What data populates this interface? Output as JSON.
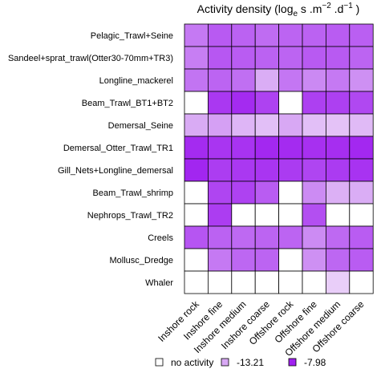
{
  "chart_data": {
    "type": "heatmap",
    "title": "Activity density (log",
    "title_sub_e": "e",
    "title_units": " s .m",
    "title_sup_m": "−2",
    "title_units2": " .d",
    "title_sup_d": "−1",
    "title_close": " )",
    "rows": [
      "Pelagic_Trawl+Seine",
      "Sandeel+sprat_trawl(Otter30-70mm+TR3)",
      "Longline_mackerel",
      "Beam_Trawl_BT1+BT2",
      "Demersal_Seine",
      "Demersal_Otter_Trawl_TR1",
      "Gill_Nets+Longline_demersal",
      "Beam_Trawl_shrimp",
      "Nephrops_Trawl_TR2",
      "Creels",
      "Mollusc_Dredge",
      "Whaler"
    ],
    "columns": [
      "Inshore rock",
      "Inshore fine",
      "Inshore medium",
      "Inshore coarse",
      "Offshore rock",
      "Offshore fine",
      "Offshore medium",
      "Offshore coarse"
    ],
    "color_scale": {
      "low_value": -13.21,
      "low_color": "#d8a8f4",
      "high_value": -7.98,
      "high_color": "#a020f0",
      "no_activity_color": "#ffffff"
    },
    "values": [
      [
        -11.4,
        -10.2,
        -10.5,
        -10.9,
        -10.6,
        -10.5,
        -10.3,
        -10.4
      ],
      [
        -11.6,
        -10.1,
        -10.3,
        -10.5,
        -10.6,
        -10.2,
        -10.2,
        -10.6
      ],
      [
        -11.2,
        -10.6,
        -11.0,
        -13.5,
        -11.3,
        -12.0,
        -11.4,
        -12.3
      ],
      [
        null,
        -8.9,
        -8.4,
        -9.3,
        null,
        -9.2,
        -9.2,
        -9.5
      ],
      [
        -13.4,
        -12.9,
        -14.0,
        -14.6,
        -13.2,
        -14.6,
        -14.8,
        -14.3
      ],
      [
        -8.4,
        -8.8,
        -8.7,
        -8.3,
        -8.4,
        -8.6,
        -8.5,
        -8.3
      ],
      [
        -8.2,
        -9.1,
        -8.9,
        -8.8,
        -9.0,
        -9.4,
        -9.0,
        -8.7
      ],
      [
        null,
        -9.4,
        -9.3,
        -10.3,
        null,
        -12.1,
        -13.7,
        -13.5
      ],
      [
        null,
        -9.1,
        null,
        null,
        null,
        -9.8,
        null,
        null
      ],
      [
        -10.0,
        -10.5,
        -10.8,
        -10.6,
        -10.6,
        -12.1,
        -10.8,
        -10.3
      ],
      [
        null,
        -11.4,
        -10.7,
        -10.6,
        null,
        -12.3,
        -10.7,
        -10.3
      ],
      [
        null,
        null,
        null,
        null,
        null,
        null,
        -15.5,
        null
      ]
    ]
  },
  "legend": {
    "items": [
      {
        "label": "no activity",
        "color": "#ffffff"
      },
      {
        "label": "-13.21",
        "color": "#d8a8f4"
      },
      {
        "label": "-7.98",
        "color": "#a020f0"
      }
    ]
  }
}
